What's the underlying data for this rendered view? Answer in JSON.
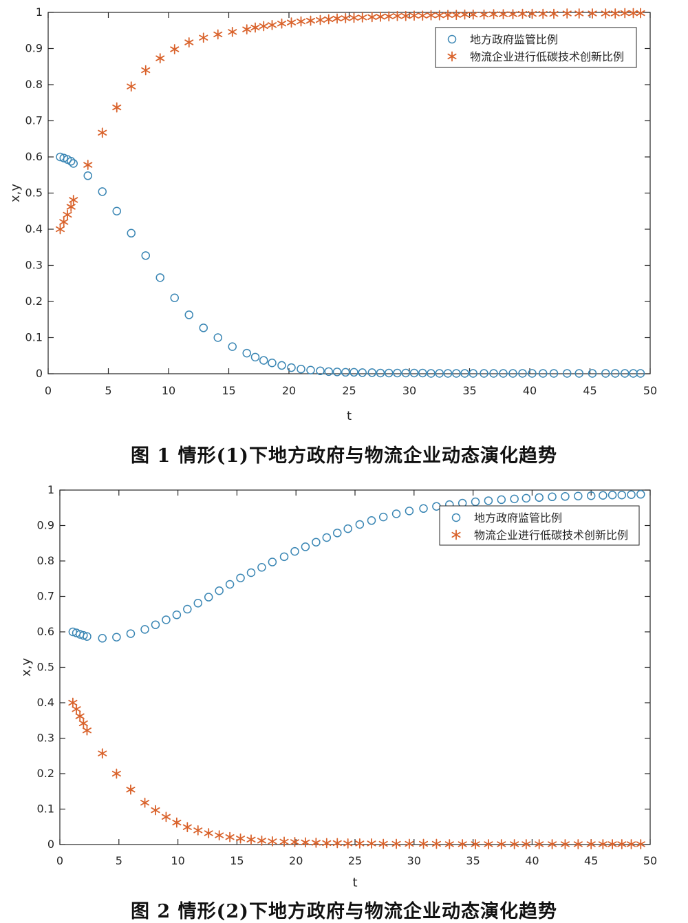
{
  "chart_data": [
    {
      "type": "scatter",
      "xlabel": "t",
      "ylabel": "x,y",
      "xlim": [
        0,
        50
      ],
      "ylim": [
        0,
        1
      ],
      "xticks": [
        "0",
        "5",
        "10",
        "15",
        "20",
        "25",
        "30",
        "35",
        "40",
        "45",
        "50"
      ],
      "yticks": [
        "0",
        "0.1",
        "0.2",
        "0.3",
        "0.4",
        "0.5",
        "0.6",
        "0.7",
        "0.8",
        "0.9",
        "1"
      ],
      "grid": false,
      "legend_position": "top-right",
      "caption": "图 1  情形(1)下地方政府与物流企业动态演化趋势",
      "series": [
        {
          "name": "地方政府监管比例",
          "marker": "circle",
          "color": "#3a86b4",
          "x": [
            1,
            1.3,
            1.6,
            1.9,
            2.1,
            3.3,
            4.5,
            5.7,
            6.9,
            8.1,
            9.3,
            10.5,
            11.7,
            12.9,
            14.1,
            15.3,
            16.5,
            17.2,
            17.9,
            18.6,
            19.4,
            20.2,
            21.0,
            21.8,
            22.6,
            23.3,
            24.0,
            24.7,
            25.4,
            26.1,
            26.9,
            27.6,
            28.3,
            29.0,
            29.7,
            30.4,
            31.1,
            31.8,
            32.5,
            33.2,
            33.9,
            34.6,
            35.3,
            36.2,
            37.0,
            37.8,
            38.6,
            39.4,
            40.2,
            41.1,
            42.0,
            43.1,
            44.1,
            45.2,
            46.3,
            47.1,
            47.9,
            48.6,
            49.2
          ],
          "y": [
            0.6,
            0.597,
            0.593,
            0.588,
            0.582,
            0.548,
            0.504,
            0.45,
            0.389,
            0.327,
            0.266,
            0.21,
            0.163,
            0.127,
            0.1,
            0.075,
            0.057,
            0.046,
            0.037,
            0.03,
            0.023,
            0.017,
            0.013,
            0.01,
            0.008,
            0.006,
            0.005,
            0.004,
            0.004,
            0.003,
            0.003,
            0.002,
            0.002,
            0.002,
            0.002,
            0.002,
            0.002,
            0.001,
            0.001,
            0.001,
            0.001,
            0.001,
            0.001,
            0.001,
            0.001,
            0.001,
            0.001,
            0.001,
            0.001,
            0.001,
            0.001,
            0.001,
            0.001,
            0.001,
            0.001,
            0.001,
            0.001,
            0.001,
            0.001
          ]
        },
        {
          "name": "物流企业进行低碳技术创新比例",
          "marker": "asterisk",
          "color": "#d9622b",
          "x": [
            1,
            1.3,
            1.6,
            1.9,
            2.1,
            3.3,
            4.5,
            5.7,
            6.9,
            8.1,
            9.3,
            10.5,
            11.7,
            12.9,
            14.1,
            15.3,
            16.5,
            17.2,
            17.9,
            18.6,
            19.4,
            20.2,
            21.0,
            21.8,
            22.6,
            23.3,
            24.0,
            24.7,
            25.4,
            26.1,
            26.9,
            27.6,
            28.3,
            29.0,
            29.7,
            30.4,
            31.1,
            31.8,
            32.5,
            33.2,
            33.9,
            34.6,
            35.3,
            36.2,
            37.0,
            37.8,
            38.6,
            39.4,
            40.2,
            41.1,
            42.0,
            43.1,
            44.1,
            45.2,
            46.3,
            47.1,
            47.9,
            48.6,
            49.2
          ],
          "y": [
            0.4,
            0.42,
            0.44,
            0.462,
            0.481,
            0.578,
            0.667,
            0.737,
            0.795,
            0.84,
            0.873,
            0.898,
            0.917,
            0.93,
            0.939,
            0.946,
            0.953,
            0.958,
            0.962,
            0.965,
            0.969,
            0.972,
            0.975,
            0.977,
            0.979,
            0.981,
            0.983,
            0.984,
            0.985,
            0.986,
            0.987,
            0.988,
            0.989,
            0.99,
            0.99,
            0.991,
            0.991,
            0.992,
            0.992,
            0.993,
            0.993,
            0.994,
            0.994,
            0.994,
            0.995,
            0.995,
            0.995,
            0.996,
            0.996,
            0.996,
            0.996,
            0.997,
            0.997,
            0.997,
            0.997,
            0.997,
            0.998,
            0.998,
            0.998
          ]
        }
      ]
    },
    {
      "type": "scatter",
      "xlabel": "t",
      "ylabel": "x,y",
      "xlim": [
        0,
        50
      ],
      "ylim": [
        0,
        1
      ],
      "xticks": [
        "0",
        "5",
        "10",
        "15",
        "20",
        "25",
        "30",
        "35",
        "40",
        "45",
        "50"
      ],
      "yticks": [
        "0",
        "0.1",
        "0.2",
        "0.3",
        "0.4",
        "0.5",
        "0.6",
        "0.7",
        "0.8",
        "0.9",
        "1"
      ],
      "grid": false,
      "legend_position": "top-right",
      "caption": "图 2  情形(2)下地方政府与物流企业动态演化趋势",
      "series": [
        {
          "name": "地方政府监管比例",
          "marker": "circle",
          "color": "#3a86b4",
          "x": [
            1.1,
            1.4,
            1.7,
            2.0,
            2.3,
            3.6,
            4.8,
            6.0,
            7.2,
            8.1,
            9.0,
            9.9,
            10.8,
            11.7,
            12.6,
            13.5,
            14.4,
            15.3,
            16.2,
            17.1,
            18.0,
            19.0,
            19.9,
            20.8,
            21.7,
            22.6,
            23.5,
            24.4,
            25.4,
            26.4,
            27.4,
            28.5,
            29.6,
            30.8,
            31.9,
            33.0,
            34.1,
            35.2,
            36.3,
            37.4,
            38.5,
            39.5,
            40.6,
            41.7,
            42.8,
            43.9,
            45.0,
            46.0,
            46.8,
            47.6,
            48.4,
            49.2
          ],
          "y": [
            0.6,
            0.597,
            0.593,
            0.59,
            0.587,
            0.582,
            0.585,
            0.595,
            0.607,
            0.62,
            0.634,
            0.648,
            0.664,
            0.681,
            0.698,
            0.716,
            0.734,
            0.752,
            0.767,
            0.782,
            0.797,
            0.812,
            0.827,
            0.84,
            0.853,
            0.866,
            0.879,
            0.891,
            0.903,
            0.914,
            0.924,
            0.933,
            0.941,
            0.948,
            0.954,
            0.959,
            0.963,
            0.967,
            0.97,
            0.973,
            0.975,
            0.977,
            0.979,
            0.981,
            0.982,
            0.983,
            0.984,
            0.985,
            0.986,
            0.986,
            0.987,
            0.988
          ]
        },
        {
          "name": "物流企业进行低碳技术创新比例",
          "marker": "asterisk",
          "color": "#d9622b",
          "x": [
            1.1,
            1.4,
            1.7,
            2.0,
            2.3,
            3.6,
            4.8,
            6.0,
            7.2,
            8.1,
            9.0,
            9.9,
            10.8,
            11.7,
            12.6,
            13.5,
            14.4,
            15.3,
            16.2,
            17.1,
            18.0,
            19.0,
            19.9,
            20.8,
            21.7,
            22.6,
            23.5,
            24.4,
            25.4,
            26.4,
            27.4,
            28.5,
            29.6,
            30.8,
            31.9,
            33.0,
            34.1,
            35.2,
            36.3,
            37.4,
            38.5,
            39.5,
            40.6,
            41.7,
            42.8,
            43.9,
            45.0,
            46.0,
            46.8,
            47.6,
            48.4,
            49.2
          ],
          "y": [
            0.4,
            0.382,
            0.362,
            0.342,
            0.322,
            0.257,
            0.2,
            0.155,
            0.118,
            0.097,
            0.078,
            0.062,
            0.049,
            0.04,
            0.032,
            0.026,
            0.021,
            0.017,
            0.014,
            0.011,
            0.009,
            0.008,
            0.007,
            0.006,
            0.005,
            0.004,
            0.004,
            0.003,
            0.003,
            0.003,
            0.002,
            0.002,
            0.002,
            0.002,
            0.002,
            0.001,
            0.001,
            0.001,
            0.001,
            0.001,
            0.001,
            0.001,
            0.001,
            0.001,
            0.001,
            0.001,
            0.001,
            0.001,
            0.001,
            0.001,
            0.001,
            0.001
          ]
        }
      ]
    }
  ]
}
